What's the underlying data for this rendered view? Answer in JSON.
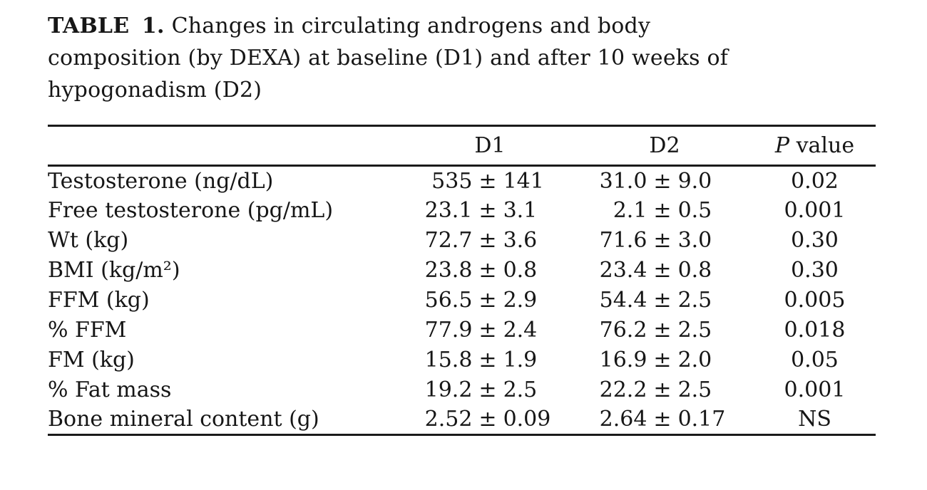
{
  "title": {
    "label": "TABLE 1.",
    "line1_rest": "Changes in circulating androgens and body",
    "line2": "composition (by DEXA) at baseline (D1) and after 10 weeks of",
    "line3": "hypogonadism (D2)"
  },
  "table": {
    "plus_minus": "±",
    "columns": {
      "label": "",
      "d1": "D1",
      "d2": "D2",
      "p_italic": "P",
      "p_rest": " value"
    },
    "rows": [
      {
        "label": "Testosterone (ng/dL)",
        "d1_mean": "535",
        "d1_sd": "141",
        "d2_mean": "31.0",
        "d2_sd": "9.0",
        "p": "0.02"
      },
      {
        "label": "Free testosterone (pg/mL)",
        "d1_mean": "23.1",
        "d1_sd": "3.1",
        "d2_mean": "2.1",
        "d2_sd": "0.5",
        "p": "0.001"
      },
      {
        "label": "Wt (kg)",
        "d1_mean": "72.7",
        "d1_sd": "3.6",
        "d2_mean": "71.6",
        "d2_sd": "3.0",
        "p": "0.30"
      },
      {
        "label": "BMI (kg/m²)",
        "d1_mean": "23.8",
        "d1_sd": "0.8",
        "d2_mean": "23.4",
        "d2_sd": "0.8",
        "p": "0.30"
      },
      {
        "label": "FFM (kg)",
        "d1_mean": "56.5",
        "d1_sd": "2.9",
        "d2_mean": "54.4",
        "d2_sd": "2.5",
        "p": "0.005"
      },
      {
        "label": "% FFM",
        "d1_mean": "77.9",
        "d1_sd": "2.4",
        "d2_mean": "76.2",
        "d2_sd": "2.5",
        "p": "0.018"
      },
      {
        "label": "FM (kg)",
        "d1_mean": "15.8",
        "d1_sd": "1.9",
        "d2_mean": "16.9",
        "d2_sd": "2.0",
        "p": "0.05"
      },
      {
        "label": "% Fat mass",
        "d1_mean": "19.2",
        "d1_sd": "2.5",
        "d2_mean": "22.2",
        "d2_sd": "2.5",
        "p": "0.001"
      },
      {
        "label": "Bone mineral content (g)",
        "d1_mean": "2.52",
        "d1_sd": "0.09",
        "d2_mean": "2.64",
        "d2_sd": "0.17",
        "p": "NS"
      }
    ]
  },
  "colors": {
    "background": "#ffffff",
    "text": "#161616",
    "rule": "#1a1a1a"
  }
}
